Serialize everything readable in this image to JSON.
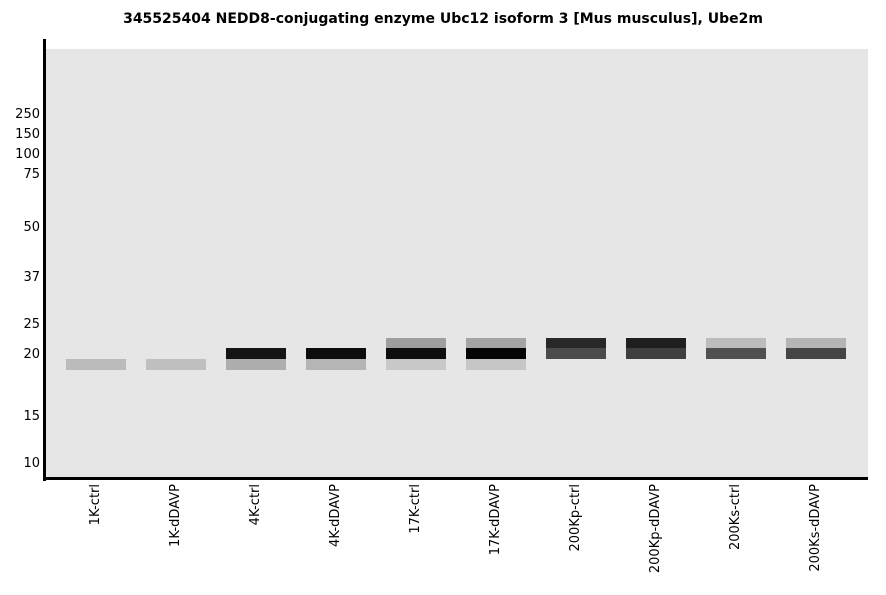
{
  "figure": {
    "title": "345525404 NEDD8-conjugating enzyme Ubc12 isoform 3 [Mus musculus], Ube2m"
  },
  "colors": {
    "plot_background": "#e6e6e6",
    "axis": "#000000",
    "page_background": "#ffffff",
    "text": "#000000"
  },
  "chart_data": {
    "type": "heatmap",
    "subtype": "virtual-western-blot-gel",
    "title": "345525404 NEDD8-conjugating enzyme Ubc12 isoform 3 [Mus musculus], Ube2m",
    "xlabel": "",
    "ylabel": "",
    "y_axis": {
      "unit": "kDa",
      "scale": "nonlinear gel migration",
      "ticks": [
        250,
        150,
        100,
        75,
        50,
        37,
        25,
        20,
        15,
        10
      ]
    },
    "categories": [
      "1K-ctrl",
      "1K-dDAVP",
      "4K-ctrl",
      "4K-dDAVP",
      "17K-ctrl",
      "17K-dDAVP",
      "200Kp-ctrl",
      "200Kp-dDAVP",
      "200Ks-ctrl",
      "200Ks-dDAVP"
    ],
    "legend": "none",
    "grid": "off",
    "lanes": [
      {
        "label": "1K-ctrl",
        "bands": [
          {
            "kda": 19.2,
            "color": "#bbbbbb"
          }
        ]
      },
      {
        "label": "1K-dDAVP",
        "bands": [
          {
            "kda": 19.2,
            "color": "#bfbfbf"
          }
        ]
      },
      {
        "label": "4K-ctrl",
        "bands": [
          {
            "kda": 20.2,
            "color": "#141414"
          },
          {
            "kda": 19.2,
            "color": "#aeaeae"
          }
        ]
      },
      {
        "label": "4K-dDAVP",
        "bands": [
          {
            "kda": 20.2,
            "color": "#0d0d0d"
          },
          {
            "kda": 19.2,
            "color": "#b5b5b5"
          }
        ]
      },
      {
        "label": "17K-ctrl",
        "bands": [
          {
            "kda": 22.0,
            "color": "#9e9e9e"
          },
          {
            "kda": 20.2,
            "color": "#0e0e0e"
          },
          {
            "kda": 19.2,
            "color": "#c8c8c8"
          }
        ]
      },
      {
        "label": "17K-dDAVP",
        "bands": [
          {
            "kda": 22.0,
            "color": "#a4a4a4"
          },
          {
            "kda": 20.2,
            "color": "#050505"
          },
          {
            "kda": 19.2,
            "color": "#c6c6c6"
          }
        ]
      },
      {
        "label": "200Kp-ctrl",
        "bands": [
          {
            "kda": 22.0,
            "color": "#282828"
          },
          {
            "kda": 20.2,
            "color": "#4b4b4b"
          }
        ]
      },
      {
        "label": "200Kp-dDAVP",
        "bands": [
          {
            "kda": 22.0,
            "color": "#1f1f1f"
          },
          {
            "kda": 20.2,
            "color": "#3f3f3f"
          }
        ]
      },
      {
        "label": "200Ks-ctrl",
        "bands": [
          {
            "kda": 22.0,
            "color": "#bcbcbc"
          },
          {
            "kda": 20.2,
            "color": "#505050"
          }
        ]
      },
      {
        "label": "200Ks-dDAVP",
        "bands": [
          {
            "kda": 22.0,
            "color": "#b5b5b5"
          },
          {
            "kda": 20.2,
            "color": "#454545"
          }
        ]
      }
    ]
  }
}
